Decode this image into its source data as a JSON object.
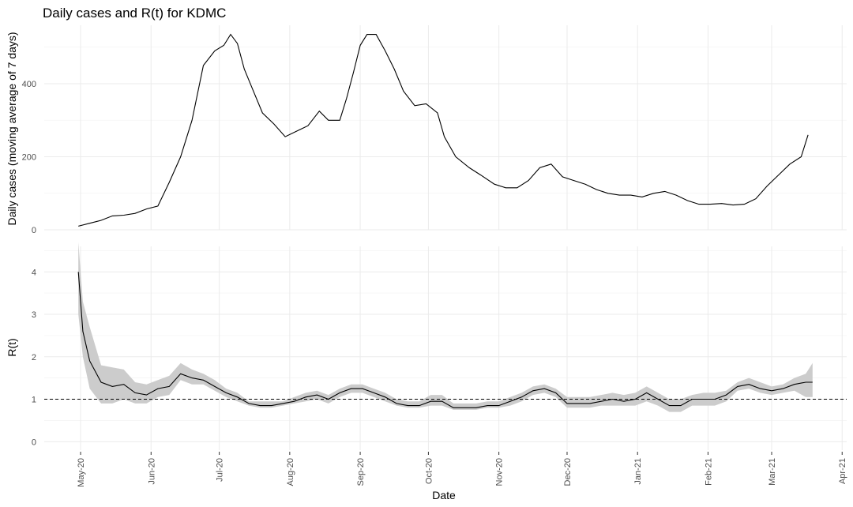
{
  "chart_data": [
    {
      "type": "line",
      "title": "Daily cases and R(t) for KDMC",
      "xlabel": "",
      "ylabel": "Daily cases (moving average of 7 days)",
      "ylim": [
        0,
        560
      ],
      "y_ticks": [
        0,
        200,
        400
      ],
      "grid": true,
      "x": [
        "2020-04-30",
        "2020-05-05",
        "2020-05-10",
        "2020-05-15",
        "2020-05-20",
        "2020-05-25",
        "2020-05-30",
        "2020-06-04",
        "2020-06-09",
        "2020-06-14",
        "2020-06-19",
        "2020-06-24",
        "2020-06-29",
        "2020-07-03",
        "2020-07-06",
        "2020-07-09",
        "2020-07-12",
        "2020-07-16",
        "2020-07-20",
        "2020-07-25",
        "2020-07-30",
        "2020-08-04",
        "2020-08-09",
        "2020-08-14",
        "2020-08-18",
        "2020-08-20",
        "2020-08-23",
        "2020-08-26",
        "2020-08-29",
        "2020-09-01",
        "2020-09-04",
        "2020-09-08",
        "2020-09-12",
        "2020-09-16",
        "2020-09-20",
        "2020-09-25",
        "2020-09-30",
        "2020-10-05",
        "2020-10-08",
        "2020-10-13",
        "2020-10-19",
        "2020-10-24",
        "2020-10-30",
        "2020-11-04",
        "2020-11-09",
        "2020-11-14",
        "2020-11-19",
        "2020-11-24",
        "2020-11-29",
        "2020-12-04",
        "2020-12-09",
        "2020-12-14",
        "2020-12-19",
        "2020-12-24",
        "2020-12-29",
        "2021-01-03",
        "2021-01-08",
        "2021-01-13",
        "2021-01-18",
        "2021-01-23",
        "2021-01-28",
        "2021-02-02",
        "2021-02-07",
        "2021-02-12",
        "2021-02-17",
        "2021-02-22",
        "2021-02-27",
        "2021-03-04",
        "2021-03-09",
        "2021-03-14",
        "2021-03-17"
      ],
      "series": [
        {
          "values": [
            10,
            18,
            26,
            38,
            40,
            45,
            57,
            65,
            130,
            200,
            300,
            450,
            490,
            505,
            535,
            510,
            440,
            380,
            320,
            290,
            255,
            270,
            285,
            325,
            300,
            300,
            300,
            360,
            430,
            505,
            535,
            535,
            490,
            440,
            380,
            340,
            345,
            320,
            255,
            200,
            170,
            150,
            125,
            115,
            115,
            135,
            170,
            180,
            145,
            135,
            125,
            110,
            100,
            95,
            95,
            90,
            100,
            105,
            95,
            80,
            70,
            70,
            72,
            68,
            70,
            85,
            120,
            150,
            180,
            200,
            260
          ],
          "color": "#000000"
        }
      ]
    },
    {
      "type": "line",
      "title": "",
      "xlabel": "Date",
      "ylabel": "R(t)",
      "ylim": [
        -0.2,
        4.6
      ],
      "y_ticks": [
        0,
        1,
        2,
        3,
        4
      ],
      "x_ticks": [
        "May-20",
        "Jun-20",
        "Jul-20",
        "Aug-20",
        "Sep-20",
        "Oct-20",
        "Nov-20",
        "Dec-20",
        "Jan-21",
        "Feb-21",
        "Mar-21",
        "Apr-21"
      ],
      "grid": true,
      "reference_line": {
        "y": 1,
        "style": "dashed"
      },
      "x": [
        "2020-04-30",
        "2020-05-02",
        "2020-05-05",
        "2020-05-10",
        "2020-05-15",
        "2020-05-20",
        "2020-05-25",
        "2020-05-30",
        "2020-06-04",
        "2020-06-09",
        "2020-06-14",
        "2020-06-19",
        "2020-06-24",
        "2020-06-29",
        "2020-07-04",
        "2020-07-09",
        "2020-07-14",
        "2020-07-19",
        "2020-07-24",
        "2020-07-29",
        "2020-08-03",
        "2020-08-08",
        "2020-08-13",
        "2020-08-18",
        "2020-08-23",
        "2020-08-28",
        "2020-09-02",
        "2020-09-07",
        "2020-09-12",
        "2020-09-17",
        "2020-09-22",
        "2020-09-27",
        "2020-10-02",
        "2020-10-07",
        "2020-10-12",
        "2020-10-17",
        "2020-10-22",
        "2020-10-27",
        "2020-11-01",
        "2020-11-06",
        "2020-11-11",
        "2020-11-16",
        "2020-11-21",
        "2020-11-26",
        "2020-12-01",
        "2020-12-06",
        "2020-12-11",
        "2020-12-16",
        "2020-12-21",
        "2020-12-26",
        "2020-12-31",
        "2021-01-05",
        "2021-01-10",
        "2021-01-15",
        "2021-01-20",
        "2021-01-25",
        "2021-01-30",
        "2021-02-04",
        "2021-02-09",
        "2021-02-14",
        "2021-02-19",
        "2021-02-24",
        "2021-03-01",
        "2021-03-06",
        "2021-03-11",
        "2021-03-16",
        "2021-03-19"
      ],
      "series": [
        {
          "values": [
            4.0,
            2.6,
            1.9,
            1.4,
            1.3,
            1.35,
            1.15,
            1.1,
            1.25,
            1.3,
            1.6,
            1.5,
            1.45,
            1.3,
            1.15,
            1.05,
            0.9,
            0.85,
            0.85,
            0.9,
            0.95,
            1.05,
            1.1,
            1.0,
            1.15,
            1.25,
            1.25,
            1.15,
            1.05,
            0.9,
            0.85,
            0.85,
            0.95,
            0.95,
            0.8,
            0.8,
            0.8,
            0.85,
            0.85,
            0.95,
            1.05,
            1.2,
            1.25,
            1.15,
            0.9,
            0.9,
            0.9,
            0.95,
            1.0,
            0.95,
            1.0,
            1.15,
            1.0,
            0.85,
            0.85,
            1.0,
            1.0,
            1.0,
            1.1,
            1.3,
            1.35,
            1.25,
            1.2,
            1.25,
            1.35,
            1.4,
            1.4
          ],
          "lower": [
            3.0,
            2.0,
            1.25,
            0.9,
            0.9,
            1.0,
            0.9,
            0.9,
            1.05,
            1.1,
            1.45,
            1.35,
            1.35,
            1.2,
            1.05,
            0.95,
            0.85,
            0.8,
            0.8,
            0.85,
            0.9,
            0.95,
            1.0,
            0.9,
            1.05,
            1.15,
            1.15,
            1.05,
            0.95,
            0.85,
            0.8,
            0.8,
            0.85,
            0.85,
            0.75,
            0.75,
            0.75,
            0.8,
            0.8,
            0.85,
            0.95,
            1.1,
            1.15,
            1.05,
            0.8,
            0.8,
            0.8,
            0.85,
            0.85,
            0.85,
            0.85,
            0.95,
            0.85,
            0.7,
            0.7,
            0.85,
            0.85,
            0.85,
            0.95,
            1.2,
            1.25,
            1.15,
            1.1,
            1.15,
            1.2,
            1.05,
            1.05
          ],
          "upper": [
            4.7,
            3.3,
            2.7,
            1.8,
            1.75,
            1.7,
            1.4,
            1.35,
            1.45,
            1.55,
            1.85,
            1.7,
            1.6,
            1.45,
            1.25,
            1.15,
            0.95,
            0.95,
            0.95,
            0.95,
            1.05,
            1.15,
            1.2,
            1.1,
            1.25,
            1.35,
            1.35,
            1.25,
            1.15,
            1.0,
            0.95,
            0.95,
            1.1,
            1.1,
            0.9,
            0.9,
            0.9,
            0.95,
            0.95,
            1.05,
            1.15,
            1.3,
            1.35,
            1.25,
            1.05,
            1.05,
            1.05,
            1.1,
            1.15,
            1.1,
            1.15,
            1.3,
            1.15,
            1.0,
            1.0,
            1.1,
            1.15,
            1.15,
            1.2,
            1.4,
            1.5,
            1.4,
            1.3,
            1.35,
            1.5,
            1.6,
            1.85
          ],
          "color": "#000000",
          "band_color": "#cccccc"
        }
      ]
    }
  ]
}
